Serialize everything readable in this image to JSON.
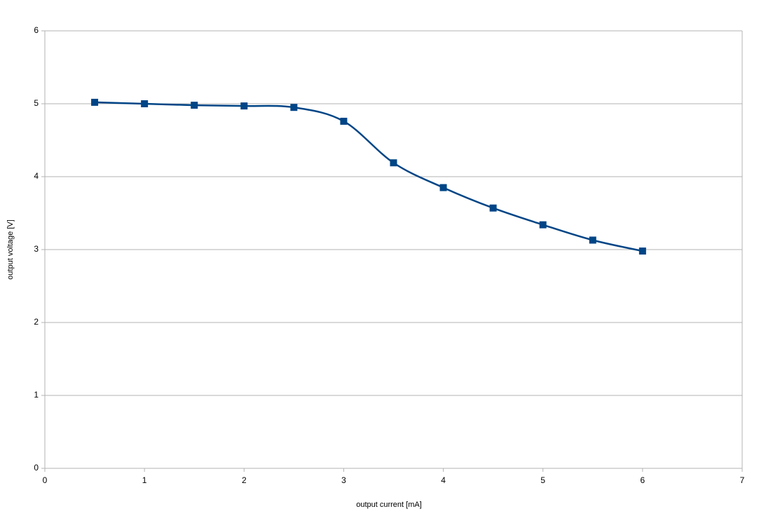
{
  "chart_data": {
    "type": "line",
    "x_label": "output current [mA]",
    "y_label": "output voltage [V]",
    "x": [
      0.5,
      1,
      1.5,
      2,
      2.5,
      3,
      3.5,
      4,
      4.5,
      5,
      5.5,
      6
    ],
    "values": [
      5.02,
      5.0,
      4.98,
      4.97,
      4.95,
      4.76,
      4.19,
      3.85,
      3.57,
      3.34,
      3.13,
      2.98
    ],
    "color": "#004586",
    "marker": "square",
    "smooth": true,
    "xlim": [
      0,
      7
    ],
    "xticks": [
      0,
      1,
      2,
      3,
      4,
      5,
      6,
      7
    ],
    "ylim": [
      0,
      6
    ],
    "yticks": [
      0,
      1,
      2,
      3,
      4,
      5,
      6
    ],
    "grid": true
  }
}
